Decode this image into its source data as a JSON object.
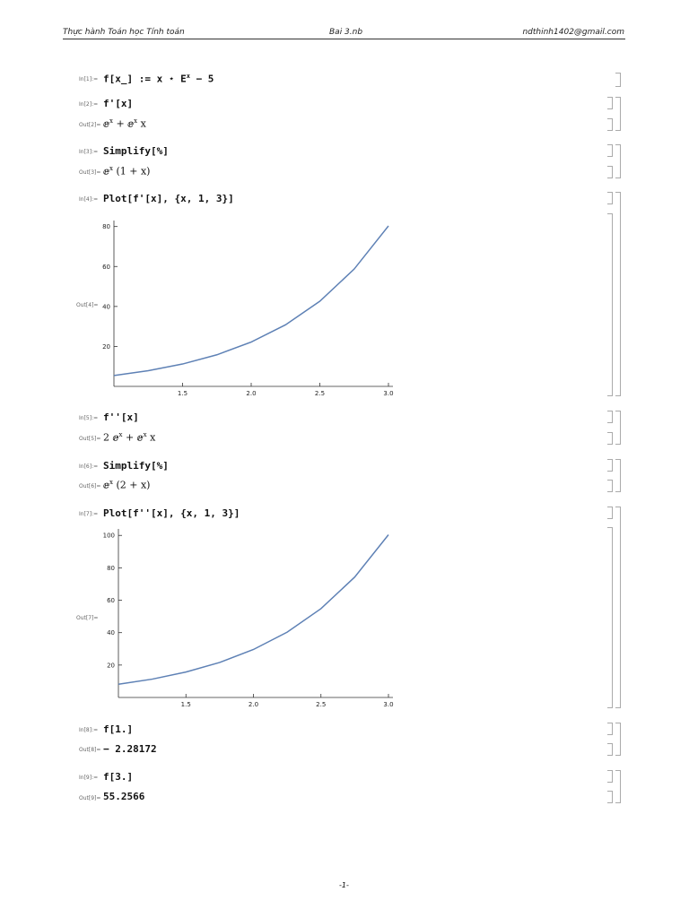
{
  "header": {
    "left": "Thực hành Toán học Tính toán",
    "center": "Bai 3.nb",
    "right": "ndthinh1402@gmail.com"
  },
  "cells": [
    {
      "in_label": "In[1]:=",
      "input": [
        "f[x_] := x ⋆ E",
        "x",
        " − 5"
      ]
    },
    {
      "in_label": "In[2]:=",
      "input": [
        "f'[x]"
      ],
      "out_label": "Out[2]=",
      "output": [
        "ⅇ",
        "x",
        " + ⅇ",
        "x",
        " x"
      ]
    },
    {
      "in_label": "In[3]:=",
      "input": [
        "Simplify[%]"
      ],
      "out_label": "Out[3]=",
      "output": [
        "ⅇ",
        "x",
        " (1 + x)"
      ]
    },
    {
      "in_label": "In[4]:=",
      "input": [
        "Plot[f'[x], {x, 1, 3}]"
      ],
      "out_label": "Out[4]="
    },
    {
      "in_label": "In[5]:=",
      "input": [
        "f''[x]"
      ],
      "out_label": "Out[5]=",
      "output": [
        "2 ⅇ",
        "x",
        " + ⅇ",
        "x",
        " x"
      ]
    },
    {
      "in_label": "In[6]:=",
      "input": [
        "Simplify[%]"
      ],
      "out_label": "Out[6]=",
      "output": [
        "ⅇ",
        "x",
        " (2 + x)"
      ]
    },
    {
      "in_label": "In[7]:=",
      "input": [
        "Plot[f''[x], {x, 1, 3}]"
      ],
      "out_label": "Out[7]="
    },
    {
      "in_label": "In[8]:=",
      "input": [
        "f[1.]"
      ],
      "out_label": "Out[8]=",
      "output": [
        "− 2.28172"
      ]
    },
    {
      "in_label": "In[9]:=",
      "input": [
        "f[3.]"
      ],
      "out_label": "Out[9]=",
      "output": [
        "55.2566"
      ]
    }
  ],
  "plots": [
    {
      "type": "line",
      "color": "#5e81b5",
      "xlim": [
        1,
        3
      ],
      "ylim": [
        0,
        83
      ],
      "xticks": [
        {
          "value": 1.5,
          "label": "1.5"
        },
        {
          "value": 2,
          "label": "2.0"
        },
        {
          "value": 2.5,
          "label": "2.5"
        },
        {
          "value": 3,
          "label": "3.0"
        }
      ],
      "yticks": [
        20,
        40,
        60,
        80
      ],
      "x": [
        1,
        1.25,
        1.5,
        1.75,
        2,
        2.25,
        2.5,
        2.75,
        3
      ],
      "values": [
        5.44,
        7.85,
        11.2,
        15.8,
        22.2,
        30.8,
        42.6,
        58.7,
        80.3
      ]
    },
    {
      "type": "line",
      "color": "#5e81b5",
      "xlim": [
        1,
        3
      ],
      "ylim": [
        0,
        104
      ],
      "xticks": [
        {
          "value": 1.5,
          "label": "1.5"
        },
        {
          "value": 2,
          "label": "2.0"
        },
        {
          "value": 2.5,
          "label": "2.5"
        },
        {
          "value": 3,
          "label": "3.0"
        }
      ],
      "yticks": [
        20,
        40,
        60,
        80,
        100
      ],
      "x": [
        1,
        1.25,
        1.5,
        1.75,
        2,
        2.25,
        2.5,
        2.75,
        3
      ],
      "values": [
        8.15,
        11.3,
        15.7,
        21.6,
        29.6,
        40.3,
        54.8,
        74.3,
        100.4
      ]
    }
  ],
  "footer": "-1-"
}
